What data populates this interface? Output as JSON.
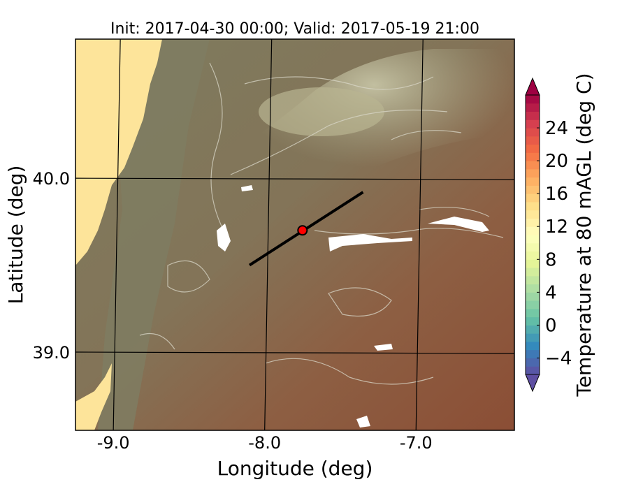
{
  "chart_data": {
    "type": "heatmap",
    "title": "Init: 2017-04-30 00:00; Valid: 2017-05-19 21:00",
    "xlabel": "Longitude (deg)",
    "ylabel": "Latitude (deg)",
    "xlim": [
      -9.25,
      -6.35
    ],
    "ylim": [
      38.55,
      40.8
    ],
    "xticks": [
      -9.0,
      -8.0,
      -7.0
    ],
    "xtick_labels": [
      "-9.0",
      "-8.0",
      "-7.0"
    ],
    "yticks": [
      39.0,
      40.0
    ],
    "ytick_labels": [
      "39.0",
      "40.0"
    ],
    "grid": true,
    "colorbar": {
      "label": "Temperature at 80 mAGL (deg C)",
      "min": -6,
      "max": 28,
      "step": 1,
      "ticks": [
        -4,
        0,
        4,
        8,
        12,
        16,
        20,
        24
      ],
      "tick_labels": [
        "−4",
        "0",
        "4",
        "8",
        "12",
        "16",
        "20",
        "24"
      ],
      "extend": "both",
      "colormap": "Spectral_r"
    },
    "transect": {
      "start": [
        -8.1,
        39.5
      ],
      "end": [
        -7.35,
        39.92
      ]
    },
    "marker": {
      "lon": -7.75,
      "lat": 39.7,
      "color": "#ff0000"
    },
    "colors": {
      "land_warm": "#8a4f36",
      "land_cool": "#7e7a5e",
      "ocean": "#fde49a",
      "highlands": "#b7b391",
      "transect": "#000000"
    }
  }
}
